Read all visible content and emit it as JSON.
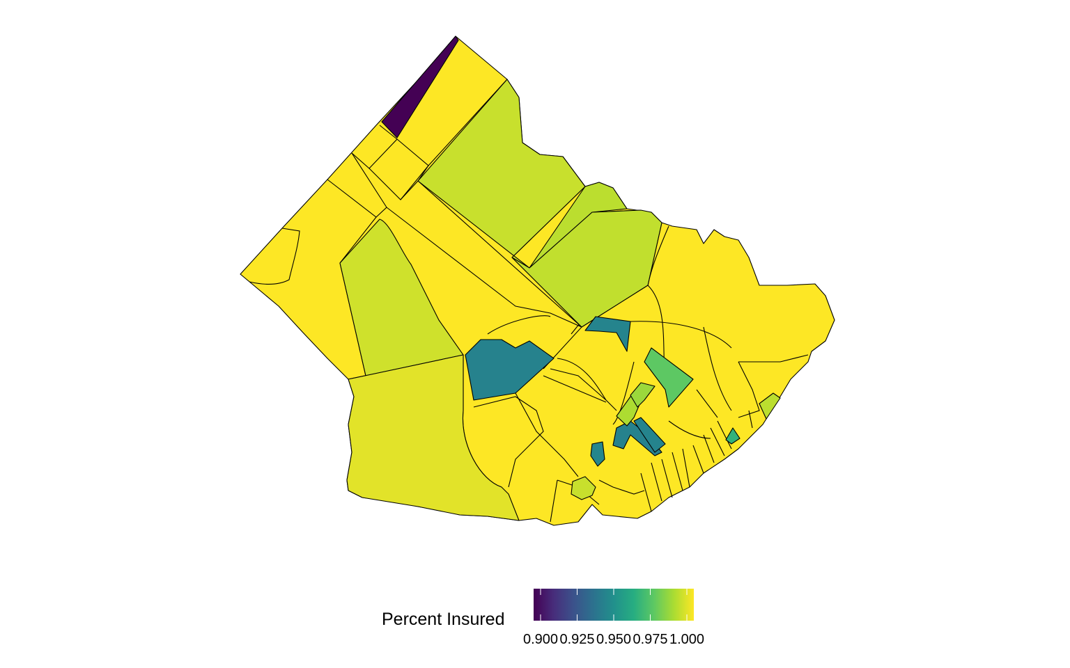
{
  "map": {
    "type": "choropleth",
    "variable": "Percent Insured",
    "color_scale": "viridis",
    "scale_range": [
      0.9,
      1.0
    ],
    "regions": [
      {
        "id": "nw-strip",
        "value": 0.9
      },
      {
        "id": "north-strip",
        "value": 1.0
      },
      {
        "id": "nw-small-a",
        "value": 1.0
      },
      {
        "id": "nw-small-b",
        "value": 1.0
      },
      {
        "id": "nw-small-c",
        "value": 1.0
      },
      {
        "id": "nw-small-d",
        "value": 1.0
      },
      {
        "id": "west",
        "value": 1.0
      },
      {
        "id": "west-central",
        "value": 0.993
      },
      {
        "id": "north-central",
        "value": 0.992
      },
      {
        "id": "central-diag",
        "value": 0.999
      },
      {
        "id": "ne-narrow",
        "value": 0.99
      },
      {
        "id": "ne-inner",
        "value": 0.991
      },
      {
        "id": "east",
        "value": 1.0
      },
      {
        "id": "southwest",
        "value": 0.996
      },
      {
        "id": "central-blue",
        "value": 0.944
      },
      {
        "id": "central-north-blue",
        "value": 0.945
      },
      {
        "id": "green-east",
        "value": 0.975
      },
      {
        "id": "small-blue-1",
        "value": 0.944
      },
      {
        "id": "small-blue-2",
        "value": 0.945
      },
      {
        "id": "small-blue-3",
        "value": 0.946
      },
      {
        "id": "lightgreen-1",
        "value": 0.988
      },
      {
        "id": "lightgreen-2",
        "value": 0.985
      },
      {
        "id": "teal-coast",
        "value": 0.965
      },
      {
        "id": "lightgreen-coast",
        "value": 0.99
      },
      {
        "id": "lime-south",
        "value": 0.992
      }
    ]
  },
  "legend": {
    "title": "Percent Insured",
    "ticks": [
      "0.900",
      "0.925",
      "0.950",
      "0.975",
      "1.000"
    ],
    "tick_values": [
      0.9,
      0.925,
      0.95,
      0.975,
      1.0
    ]
  }
}
